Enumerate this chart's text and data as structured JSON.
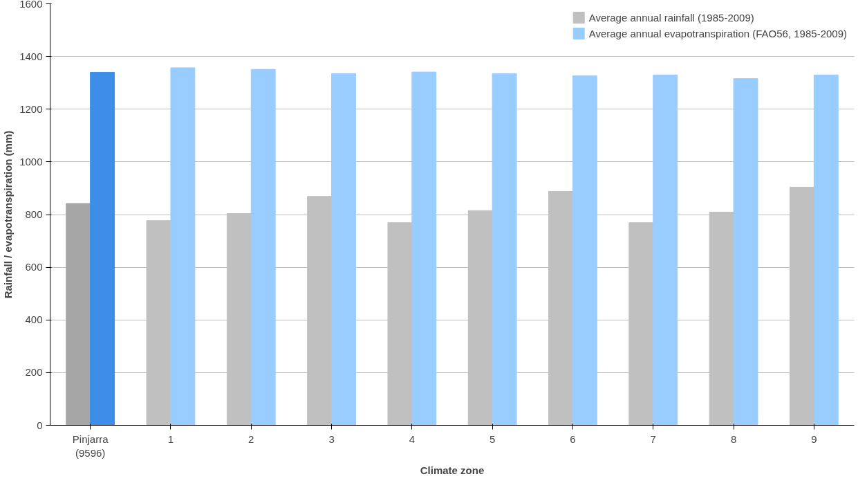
{
  "chart_data": {
    "type": "bar",
    "xlabel": "Climate zone",
    "ylabel": "Rainfall / evapotranspiration (mm)",
    "categories": [
      "Pinjarra\n(9596)",
      "1",
      "2",
      "3",
      "4",
      "5",
      "6",
      "7",
      "8",
      "9"
    ],
    "series": [
      {
        "name": "Average annual rainfall (1985-2009)",
        "color": "#c0c0c0",
        "colors": [
          "#a6a6a6",
          "#c0c0c0",
          "#c0c0c0",
          "#c0c0c0",
          "#c0c0c0",
          "#c0c0c0",
          "#c0c0c0",
          "#c0c0c0",
          "#c0c0c0",
          "#c0c0c0"
        ],
        "values": [
          842,
          777,
          804,
          869,
          769,
          815,
          888,
          769,
          809,
          904
        ]
      },
      {
        "name": "Average annual evapotranspiration (FAO56, 1985-2009)",
        "color": "#99ccff",
        "colors": [
          "#3d8ee8",
          "#99ccff",
          "#99ccff",
          "#99ccff",
          "#99ccff",
          "#99ccff",
          "#99ccff",
          "#99ccff",
          "#99ccff",
          "#99ccff"
        ],
        "values": [
          1340,
          1357,
          1351,
          1335,
          1341,
          1335,
          1327,
          1330,
          1316,
          1330
        ]
      }
    ],
    "ylim": [
      0,
      1600
    ],
    "yticks": [
      0,
      200,
      400,
      600,
      800,
      1000,
      1200,
      1400,
      1600
    ],
    "grid": "y",
    "legend": "top right"
  }
}
